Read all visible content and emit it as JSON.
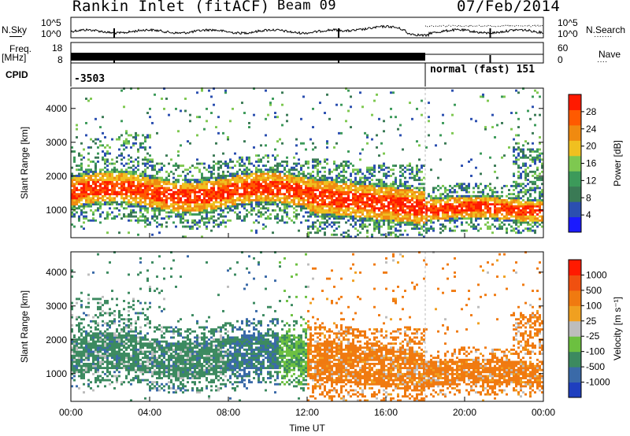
{
  "header": {
    "station": "Rankin Inlet (fitACF)",
    "beam": "Beam 09",
    "date": "07/Feb/2014"
  },
  "strip_labels": {
    "nsky": "N.Sky",
    "nsearch": "N.Search",
    "nsearch_dots": "·······",
    "freq_line1": "Freq.",
    "freq_line2": "[MHz]",
    "nave": "Nave",
    "nave_dots": "····",
    "cpid": "CPID",
    "noise_ticks": [
      "10^5",
      "10^0"
    ],
    "freq_ticks": [
      "18",
      "8"
    ],
    "nave_ticks": [
      "60",
      "0"
    ]
  },
  "cpid_segments": [
    {
      "start_hour": 0,
      "label": "-3503"
    },
    {
      "start_hour": 18,
      "label": "normal (fast) 151"
    }
  ],
  "colors": {
    "power": [
      "#1a1aff",
      "#2b4fb0",
      "#3a7a55",
      "#3c9a5a",
      "#7ec850",
      "#f0c020",
      "#f08a10",
      "#ff5a00",
      "#ff1a00"
    ],
    "velocity": [
      "#1f3fbf",
      "#3a6aa8",
      "#3c8a60",
      "#6cc040",
      "#bdbdbd",
      "#f0a020",
      "#f07a10",
      "#f05010",
      "#ff1a00"
    ]
  },
  "chart_data": [
    {
      "type": "heatmap",
      "name": "power",
      "xlabel": "",
      "ylabel": "Slant Range [km]",
      "xlim": [
        "00:00",
        "00:00"
      ],
      "ylim": [
        180,
        4600
      ],
      "yticks": [
        1000,
        2000,
        3000,
        4000
      ],
      "colorbar": {
        "label": "Power [dB]",
        "ticks": [
          4,
          8,
          12,
          16,
          20,
          24,
          28
        ],
        "range": [
          0,
          32
        ]
      }
    },
    {
      "type": "heatmap",
      "name": "velocity",
      "xlabel": "Time UT",
      "ylabel": "Slant Range [km]",
      "xticks": [
        "00:00",
        "04:00",
        "08:00",
        "12:00",
        "16:00",
        "20:00",
        "00:00"
      ],
      "ylim": [
        180,
        4600
      ],
      "yticks": [
        1000,
        2000,
        3000,
        4000
      ],
      "colorbar": {
        "label": "Velocity [m s⁻¹]",
        "ticks": [
          1000,
          500,
          100,
          25,
          -25,
          -100,
          -500,
          -1000
        ]
      }
    }
  ]
}
